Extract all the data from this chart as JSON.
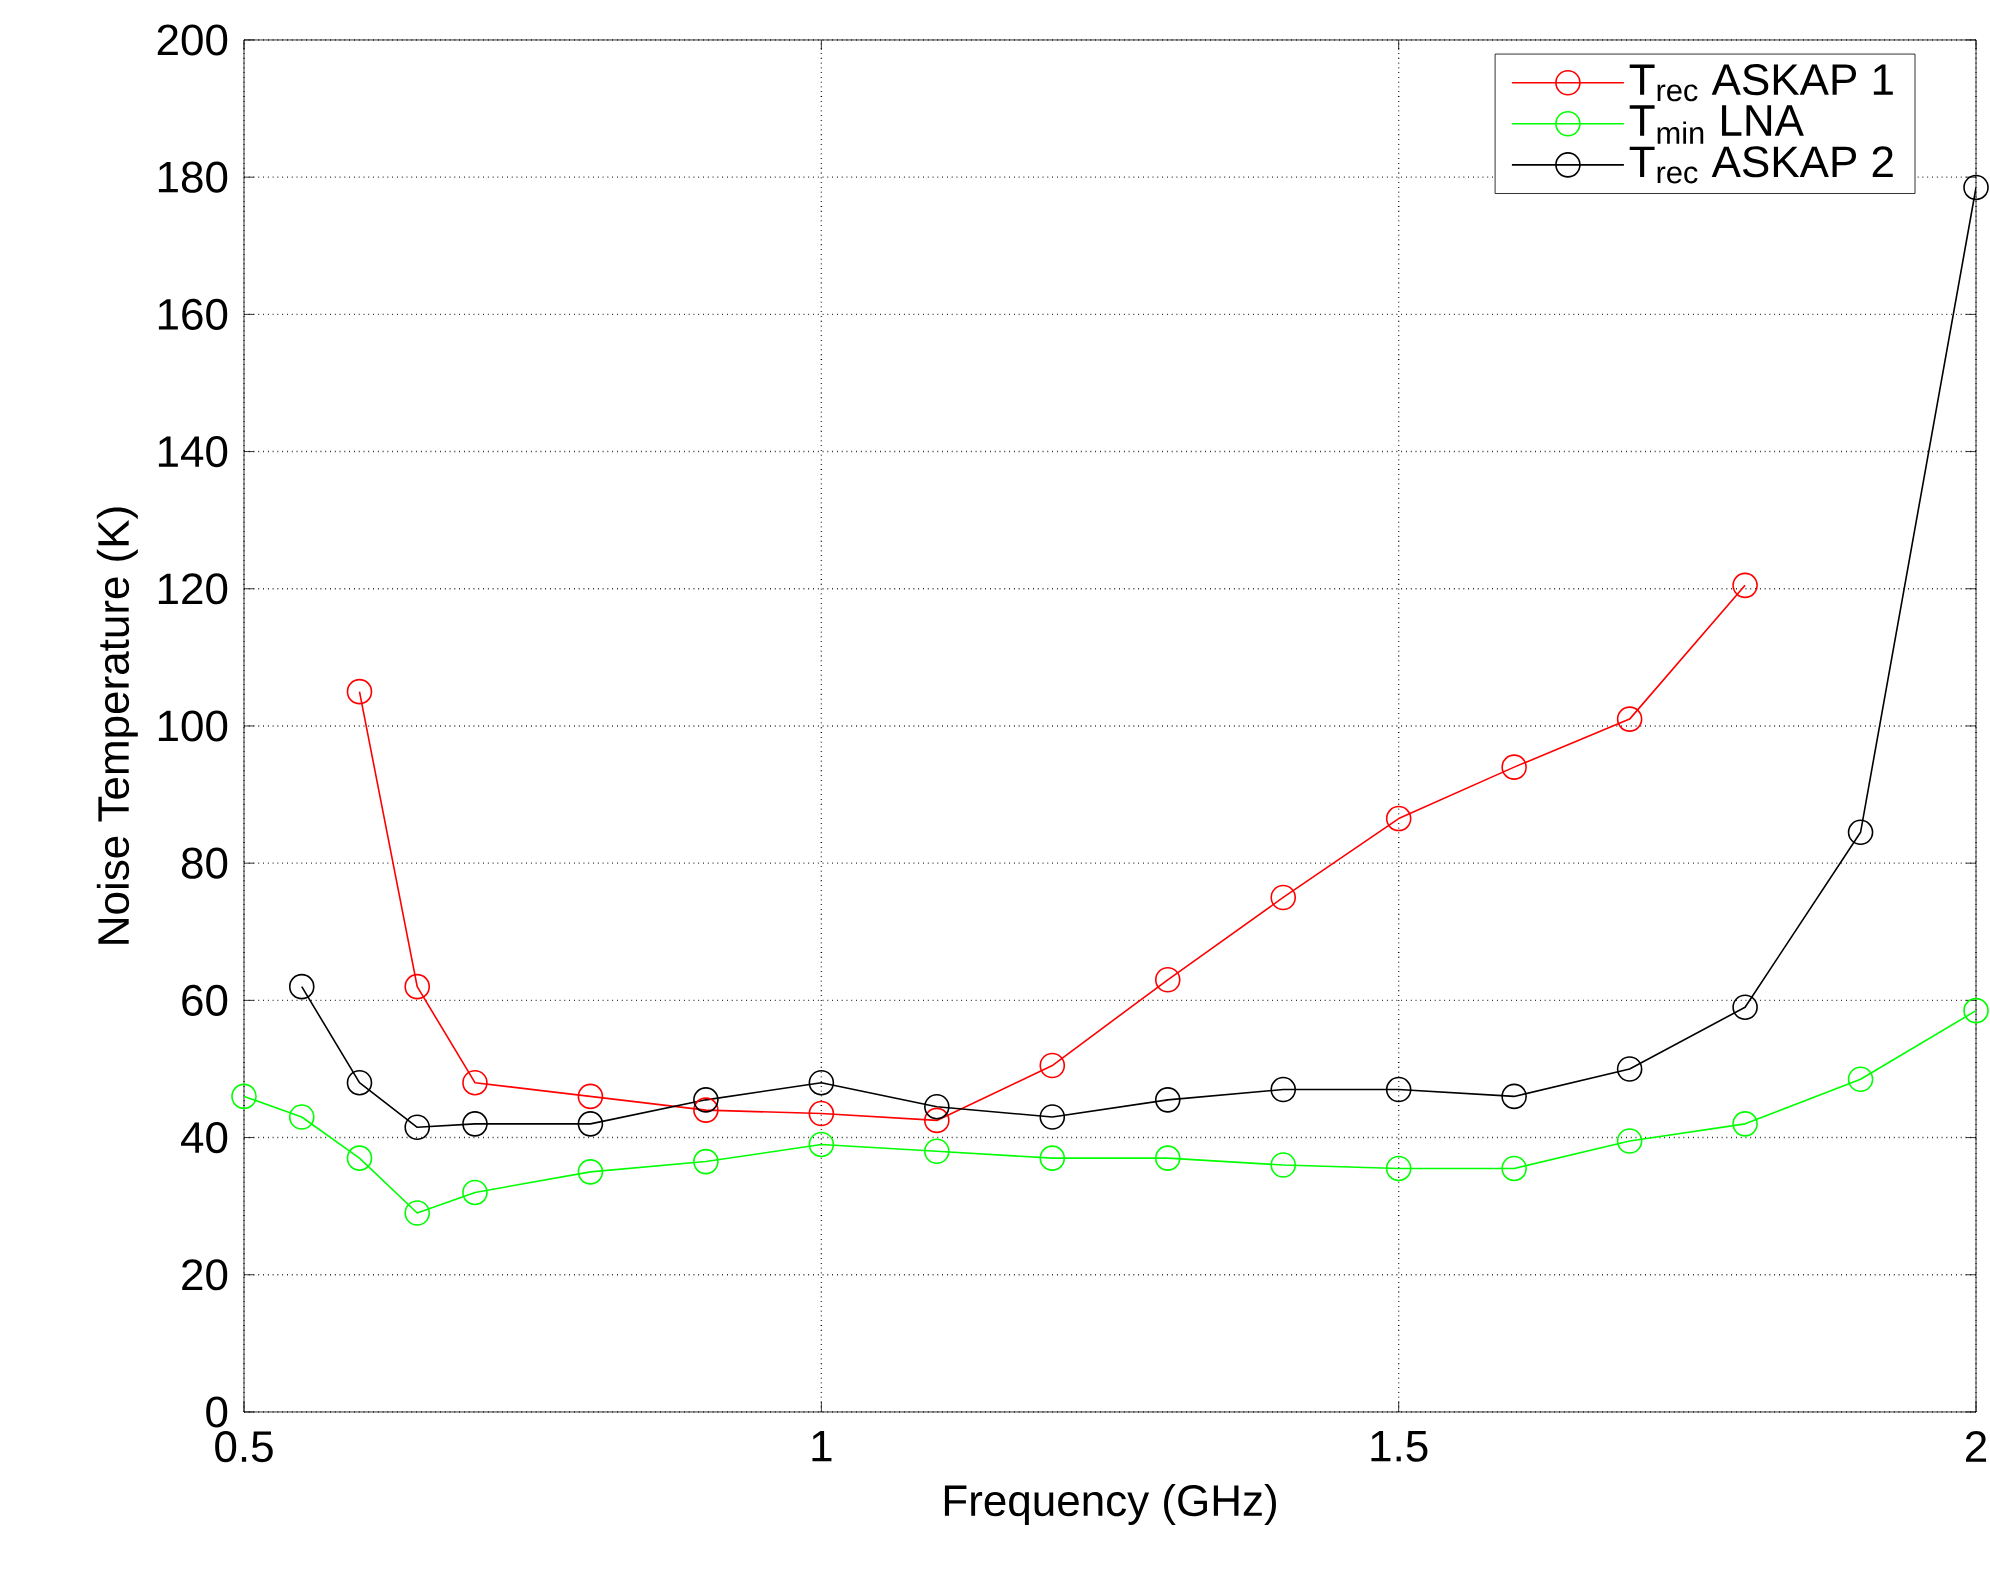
{
  "chart_data": {
    "type": "line",
    "xlabel": "Frequency (GHz)",
    "ylabel": "Noise Temperature (K)",
    "x": [
      0.5,
      0.55,
      0.6,
      0.65,
      0.7,
      0.8,
      0.9,
      1.0,
      1.1,
      1.2,
      1.3,
      1.4,
      1.5,
      1.6,
      1.7,
      1.8,
      1.9,
      2.0
    ],
    "series": [
      {
        "name": "T$_{rec}$ ASKAP 1",
        "color": "#ff0000",
        "values": [
          null,
          null,
          105,
          62,
          48,
          46,
          44,
          43.5,
          42.5,
          50.5,
          63,
          75,
          86.5,
          94,
          101,
          120.5,
          null,
          null
        ]
      },
      {
        "name": "T$_{min}$ LNA",
        "color": "#00ff00",
        "values": [
          46,
          43,
          37,
          29,
          32,
          35,
          36.5,
          39,
          38,
          37,
          37,
          36,
          35.5,
          35.5,
          39.5,
          42,
          48.5,
          58.5
        ]
      },
      {
        "name": "T$_{rec}$ ASKAP 2",
        "color": "#000000",
        "values": [
          null,
          62,
          48,
          41.5,
          42,
          42,
          45.5,
          48,
          44.5,
          43,
          45.5,
          47,
          47,
          46,
          50,
          59,
          84.5,
          178.5
        ]
      }
    ],
    "xlim": [
      0.5,
      2
    ],
    "ylim": [
      0,
      200
    ],
    "xticks": [
      0.5,
      1,
      1.5,
      2
    ],
    "yticks": [
      0,
      20,
      40,
      60,
      80,
      100,
      120,
      140,
      160,
      180,
      200
    ],
    "grid": true,
    "legend": "top right",
    "marker": "circle"
  }
}
